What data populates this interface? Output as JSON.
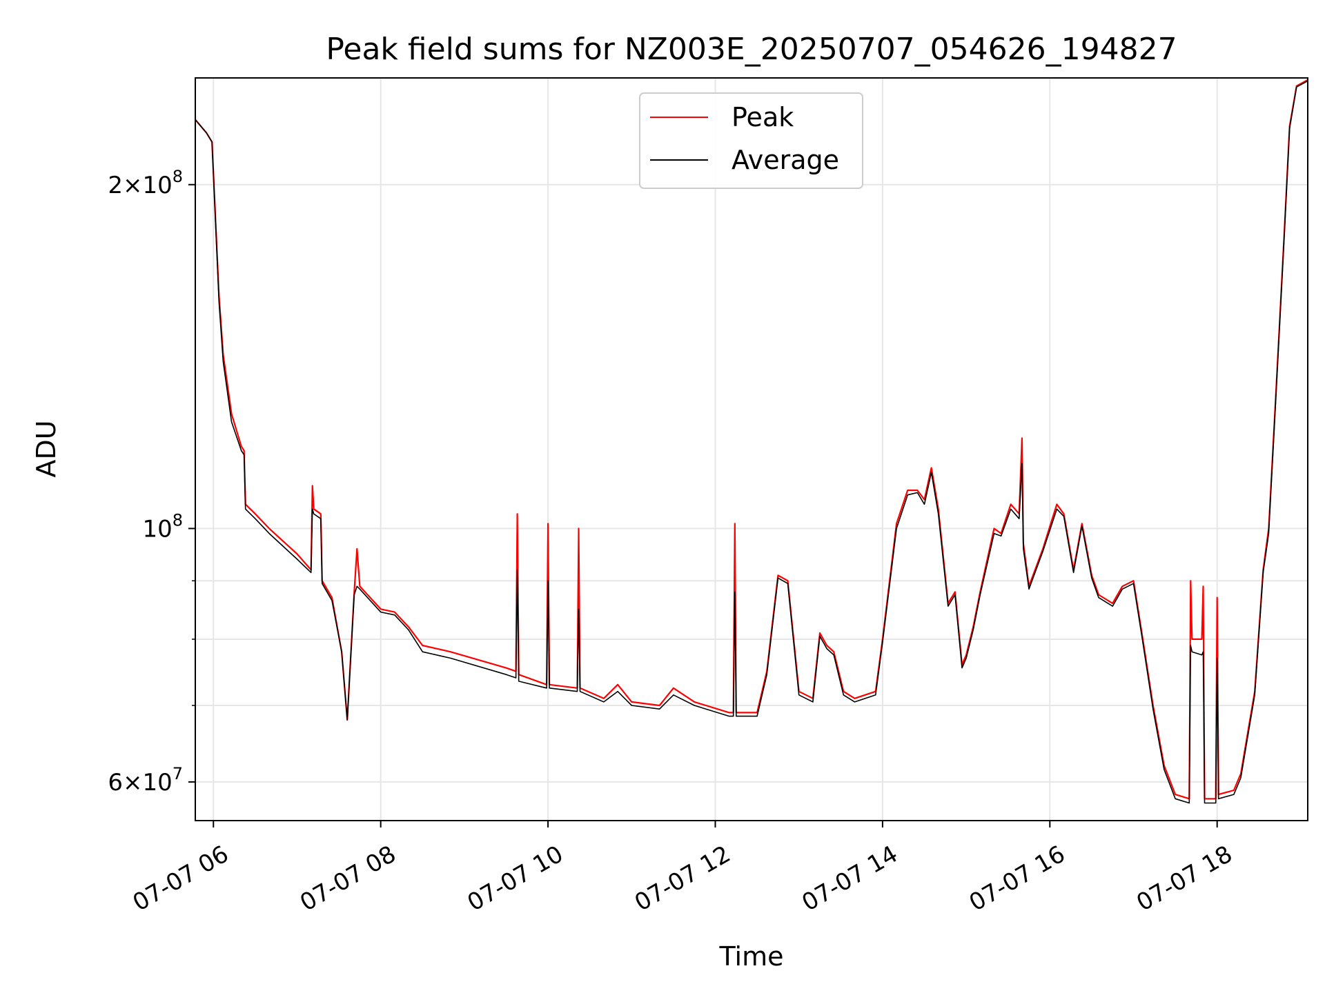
{
  "chart_data": {
    "type": "line",
    "title": "Peak field sums for NZ003E_20250707_054626_194827",
    "xlabel": "Time",
    "ylabel": "ADU",
    "y_scale": "log",
    "ylim": [
      55500000,
      248000000
    ],
    "xlim": [
      "07-07 05:47",
      "07-07 19:05"
    ],
    "grid": true,
    "legend_position": "top-center",
    "x_ticks": [
      "07-07 06",
      "07-07 08",
      "07-07 10",
      "07-07 12",
      "07-07 14",
      "07-07 16",
      "07-07 18"
    ],
    "y_ticks": [
      {
        "mantissa": "2",
        "base": "10",
        "exponent": "8",
        "value": 200000000
      },
      {
        "mantissa": "",
        "base": "10",
        "exponent": "8",
        "value": 100000000
      },
      {
        "mantissa": "6",
        "base": "10",
        "exponent": "7",
        "value": 60000000
      }
    ],
    "series": [
      {
        "name": "Peak",
        "color": "#ff0000",
        "points": [
          [
            "07-07 05:47",
            228000000
          ],
          [
            "07-07 05:55",
            222000000
          ],
          [
            "07-07 05:59",
            218000000
          ],
          [
            "07-07 06:04",
            160000000
          ],
          [
            "07-07 06:07",
            142000000
          ],
          [
            "07-07 06:13",
            126000000
          ],
          [
            "07-07 06:20",
            118000000
          ],
          [
            "07-07 06:22",
            117000000
          ],
          [
            "07-07 06:23",
            105000000
          ],
          [
            "07-07 06:30",
            103000000
          ],
          [
            "07-07 06:40",
            100000000
          ],
          [
            "07-07 07:00",
            95000000
          ],
          [
            "07-07 07:10",
            92000000
          ],
          [
            "07-07 07:11",
            109000000
          ],
          [
            "07-07 07:12",
            104000000
          ],
          [
            "07-07 07:17",
            103000000
          ],
          [
            "07-07 07:18",
            90000000
          ],
          [
            "07-07 07:25",
            87000000
          ],
          [
            "07-07 07:32",
            78000000
          ],
          [
            "07-07 07:36",
            68000000
          ],
          [
            "07-07 07:41",
            88000000
          ],
          [
            "07-07 07:43",
            96000000
          ],
          [
            "07-07 07:45",
            89000000
          ],
          [
            "07-07 08:00",
            85000000
          ],
          [
            "07-07 08:10",
            84500000
          ],
          [
            "07-07 08:20",
            82000000
          ],
          [
            "07-07 08:30",
            79000000
          ],
          [
            "07-07 08:50",
            78000000
          ],
          [
            "07-07 09:30",
            75500000
          ],
          [
            "07-07 09:37",
            75000000
          ],
          [
            "07-07 09:38",
            103000000
          ],
          [
            "07-07 09:39",
            74500000
          ],
          [
            "07-07 09:59",
            73000000
          ],
          [
            "07-07 10:00",
            101000000
          ],
          [
            "07-07 10:01",
            73000000
          ],
          [
            "07-07 10:21",
            72500000
          ],
          [
            "07-07 10:22",
            100000000
          ],
          [
            "07-07 10:23",
            72500000
          ],
          [
            "07-07 10:40",
            71000000
          ],
          [
            "07-07 10:50",
            73000000
          ],
          [
            "07-07 11:00",
            70500000
          ],
          [
            "07-07 11:20",
            70000000
          ],
          [
            "07-07 11:30",
            72500000
          ],
          [
            "07-07 11:45",
            70500000
          ],
          [
            "07-07 12:10",
            69000000
          ],
          [
            "07-07 12:13",
            69000000
          ],
          [
            "07-07 12:14",
            101000000
          ],
          [
            "07-07 12:15",
            69000000
          ],
          [
            "07-07 12:30",
            69000000
          ],
          [
            "07-07 12:37",
            75000000
          ],
          [
            "07-07 12:45",
            91000000
          ],
          [
            "07-07 12:52",
            90000000
          ],
          [
            "07-07 13:00",
            72000000
          ],
          [
            "07-07 13:10",
            71000000
          ],
          [
            "07-07 13:15",
            81000000
          ],
          [
            "07-07 13:20",
            79000000
          ],
          [
            "07-07 13:25",
            78000000
          ],
          [
            "07-07 13:32",
            72000000
          ],
          [
            "07-07 13:40",
            71000000
          ],
          [
            "07-07 13:55",
            72000000
          ],
          [
            "07-07 14:00",
            80000000
          ],
          [
            "07-07 14:10",
            101000000
          ],
          [
            "07-07 14:18",
            108000000
          ],
          [
            "07-07 14:25",
            108000000
          ],
          [
            "07-07 14:30",
            106000000
          ],
          [
            "07-07 14:35",
            113000000
          ],
          [
            "07-07 14:40",
            104000000
          ],
          [
            "07-07 14:47",
            86000000
          ],
          [
            "07-07 14:52",
            88000000
          ],
          [
            "07-07 14:57",
            76000000
          ],
          [
            "07-07 15:00",
            77500000
          ],
          [
            "07-07 15:05",
            82000000
          ],
          [
            "07-07 15:10",
            88000000
          ],
          [
            "07-07 15:20",
            100000000
          ],
          [
            "07-07 15:25",
            99000000
          ],
          [
            "07-07 15:32",
            105000000
          ],
          [
            "07-07 15:38",
            103000000
          ],
          [
            "07-07 15:40",
            120000000
          ],
          [
            "07-07 15:41",
            97000000
          ],
          [
            "07-07 15:45",
            89000000
          ],
          [
            "07-07 15:55",
            96000000
          ],
          [
            "07-07 16:05",
            105000000
          ],
          [
            "07-07 16:10",
            103000000
          ],
          [
            "07-07 16:17",
            92000000
          ],
          [
            "07-07 16:23",
            101000000
          ],
          [
            "07-07 16:30",
            91000000
          ],
          [
            "07-07 16:35",
            87500000
          ],
          [
            "07-07 16:45",
            86000000
          ],
          [
            "07-07 16:52",
            89000000
          ],
          [
            "07-07 17:00",
            90000000
          ],
          [
            "07-07 17:06",
            81000000
          ],
          [
            "07-07 17:14",
            70000000
          ],
          [
            "07-07 17:22",
            62000000
          ],
          [
            "07-07 17:30",
            58500000
          ],
          [
            "07-07 17:40",
            58000000
          ],
          [
            "07-07 17:41",
            90000000
          ],
          [
            "07-07 17:42",
            80000000
          ],
          [
            "07-07 17:49",
            80000000
          ],
          [
            "07-07 17:50",
            89000000
          ],
          [
            "07-07 17:51",
            58000000
          ],
          [
            "07-07 17:59",
            58000000
          ],
          [
            "07-07 18:00",
            87000000
          ],
          [
            "07-07 18:01",
            58500000
          ],
          [
            "07-07 18:12",
            59000000
          ],
          [
            "07-07 18:17",
            61000000
          ],
          [
            "07-07 18:27",
            72000000
          ],
          [
            "07-07 18:33",
            92000000
          ],
          [
            "07-07 18:37",
            100000000
          ],
          [
            "07-07 18:42",
            130000000
          ],
          [
            "07-07 18:48",
            180000000
          ],
          [
            "07-07 18:52",
            225000000
          ],
          [
            "07-07 18:57",
            244000000
          ],
          [
            "07-07 19:05",
            247000000
          ]
        ]
      },
      {
        "name": "Average",
        "color": "#000000",
        "points": [
          [
            "07-07 05:47",
            228000000
          ],
          [
            "07-07 05:55",
            222000000
          ],
          [
            "07-07 05:59",
            218000000
          ],
          [
            "07-07 06:04",
            158000000
          ],
          [
            "07-07 06:07",
            140000000
          ],
          [
            "07-07 06:13",
            124000000
          ],
          [
            "07-07 06:20",
            117000000
          ],
          [
            "07-07 06:22",
            116000000
          ],
          [
            "07-07 06:23",
            104000000
          ],
          [
            "07-07 06:30",
            102000000
          ],
          [
            "07-07 06:40",
            99000000
          ],
          [
            "07-07 07:00",
            94000000
          ],
          [
            "07-07 07:10",
            91500000
          ],
          [
            "07-07 07:11",
            104000000
          ],
          [
            "07-07 07:12",
            103000000
          ],
          [
            "07-07 07:17",
            102000000
          ],
          [
            "07-07 07:18",
            89500000
          ],
          [
            "07-07 07:25",
            86500000
          ],
          [
            "07-07 07:32",
            78000000
          ],
          [
            "07-07 07:36",
            68000000
          ],
          [
            "07-07 07:41",
            87500000
          ],
          [
            "07-07 07:43",
            89000000
          ],
          [
            "07-07 07:45",
            88500000
          ],
          [
            "07-07 08:00",
            84500000
          ],
          [
            "07-07 08:10",
            84000000
          ],
          [
            "07-07 08:20",
            81500000
          ],
          [
            "07-07 08:30",
            78000000
          ],
          [
            "07-07 08:50",
            77000000
          ],
          [
            "07-07 09:30",
            74500000
          ],
          [
            "07-07 09:37",
            74000000
          ],
          [
            "07-07 09:38",
            92000000
          ],
          [
            "07-07 09:39",
            73500000
          ],
          [
            "07-07 09:59",
            72500000
          ],
          [
            "07-07 10:00",
            90000000
          ],
          [
            "07-07 10:01",
            72500000
          ],
          [
            "07-07 10:21",
            72000000
          ],
          [
            "07-07 10:22",
            85000000
          ],
          [
            "07-07 10:23",
            72000000
          ],
          [
            "07-07 10:40",
            70500000
          ],
          [
            "07-07 10:50",
            72000000
          ],
          [
            "07-07 11:00",
            70000000
          ],
          [
            "07-07 11:20",
            69500000
          ],
          [
            "07-07 11:30",
            71500000
          ],
          [
            "07-07 11:45",
            70000000
          ],
          [
            "07-07 12:10",
            68500000
          ],
          [
            "07-07 12:13",
            68500000
          ],
          [
            "07-07 12:14",
            88000000
          ],
          [
            "07-07 12:15",
            68500000
          ],
          [
            "07-07 12:30",
            68500000
          ],
          [
            "07-07 12:37",
            74500000
          ],
          [
            "07-07 12:45",
            90500000
          ],
          [
            "07-07 12:52",
            89500000
          ],
          [
            "07-07 13:00",
            71500000
          ],
          [
            "07-07 13:10",
            70500000
          ],
          [
            "07-07 13:15",
            80500000
          ],
          [
            "07-07 13:20",
            78500000
          ],
          [
            "07-07 13:25",
            77500000
          ],
          [
            "07-07 13:32",
            71500000
          ],
          [
            "07-07 13:40",
            70500000
          ],
          [
            "07-07 13:55",
            71500000
          ],
          [
            "07-07 14:00",
            79500000
          ],
          [
            "07-07 14:10",
            100000000
          ],
          [
            "07-07 14:18",
            107000000
          ],
          [
            "07-07 14:25",
            107500000
          ],
          [
            "07-07 14:30",
            105000000
          ],
          [
            "07-07 14:35",
            112000000
          ],
          [
            "07-07 14:40",
            103000000
          ],
          [
            "07-07 14:47",
            85500000
          ],
          [
            "07-07 14:52",
            87500000
          ],
          [
            "07-07 14:57",
            75500000
          ],
          [
            "07-07 15:00",
            77000000
          ],
          [
            "07-07 15:05",
            81500000
          ],
          [
            "07-07 15:10",
            87500000
          ],
          [
            "07-07 15:20",
            99000000
          ],
          [
            "07-07 15:25",
            98500000
          ],
          [
            "07-07 15:32",
            104000000
          ],
          [
            "07-07 15:38",
            102000000
          ],
          [
            "07-07 15:40",
            114000000
          ],
          [
            "07-07 15:41",
            96000000
          ],
          [
            "07-07 15:45",
            88500000
          ],
          [
            "07-07 15:55",
            95500000
          ],
          [
            "07-07 16:05",
            104000000
          ],
          [
            "07-07 16:10",
            102500000
          ],
          [
            "07-07 16:17",
            91500000
          ],
          [
            "07-07 16:23",
            100500000
          ],
          [
            "07-07 16:30",
            90500000
          ],
          [
            "07-07 16:35",
            87000000
          ],
          [
            "07-07 16:45",
            85500000
          ],
          [
            "07-07 16:52",
            88500000
          ],
          [
            "07-07 17:00",
            89500000
          ],
          [
            "07-07 17:06",
            80500000
          ],
          [
            "07-07 17:14",
            69500000
          ],
          [
            "07-07 17:22",
            61500000
          ],
          [
            "07-07 17:30",
            58000000
          ],
          [
            "07-07 17:40",
            57500000
          ],
          [
            "07-07 17:41",
            79000000
          ],
          [
            "07-07 17:42",
            78000000
          ],
          [
            "07-07 17:49",
            77500000
          ],
          [
            "07-07 17:50",
            78000000
          ],
          [
            "07-07 17:51",
            57500000
          ],
          [
            "07-07 17:59",
            57500000
          ],
          [
            "07-07 18:00",
            77000000
          ],
          [
            "07-07 18:01",
            58000000
          ],
          [
            "07-07 18:12",
            58500000
          ],
          [
            "07-07 18:17",
            60500000
          ],
          [
            "07-07 18:27",
            71500000
          ],
          [
            "07-07 18:33",
            91500000
          ],
          [
            "07-07 18:37",
            99000000
          ],
          [
            "07-07 18:42",
            129000000
          ],
          [
            "07-07 18:48",
            179000000
          ],
          [
            "07-07 18:52",
            224000000
          ],
          [
            "07-07 18:57",
            243500000
          ],
          [
            "07-07 19:05",
            246500000
          ]
        ]
      }
    ]
  }
}
